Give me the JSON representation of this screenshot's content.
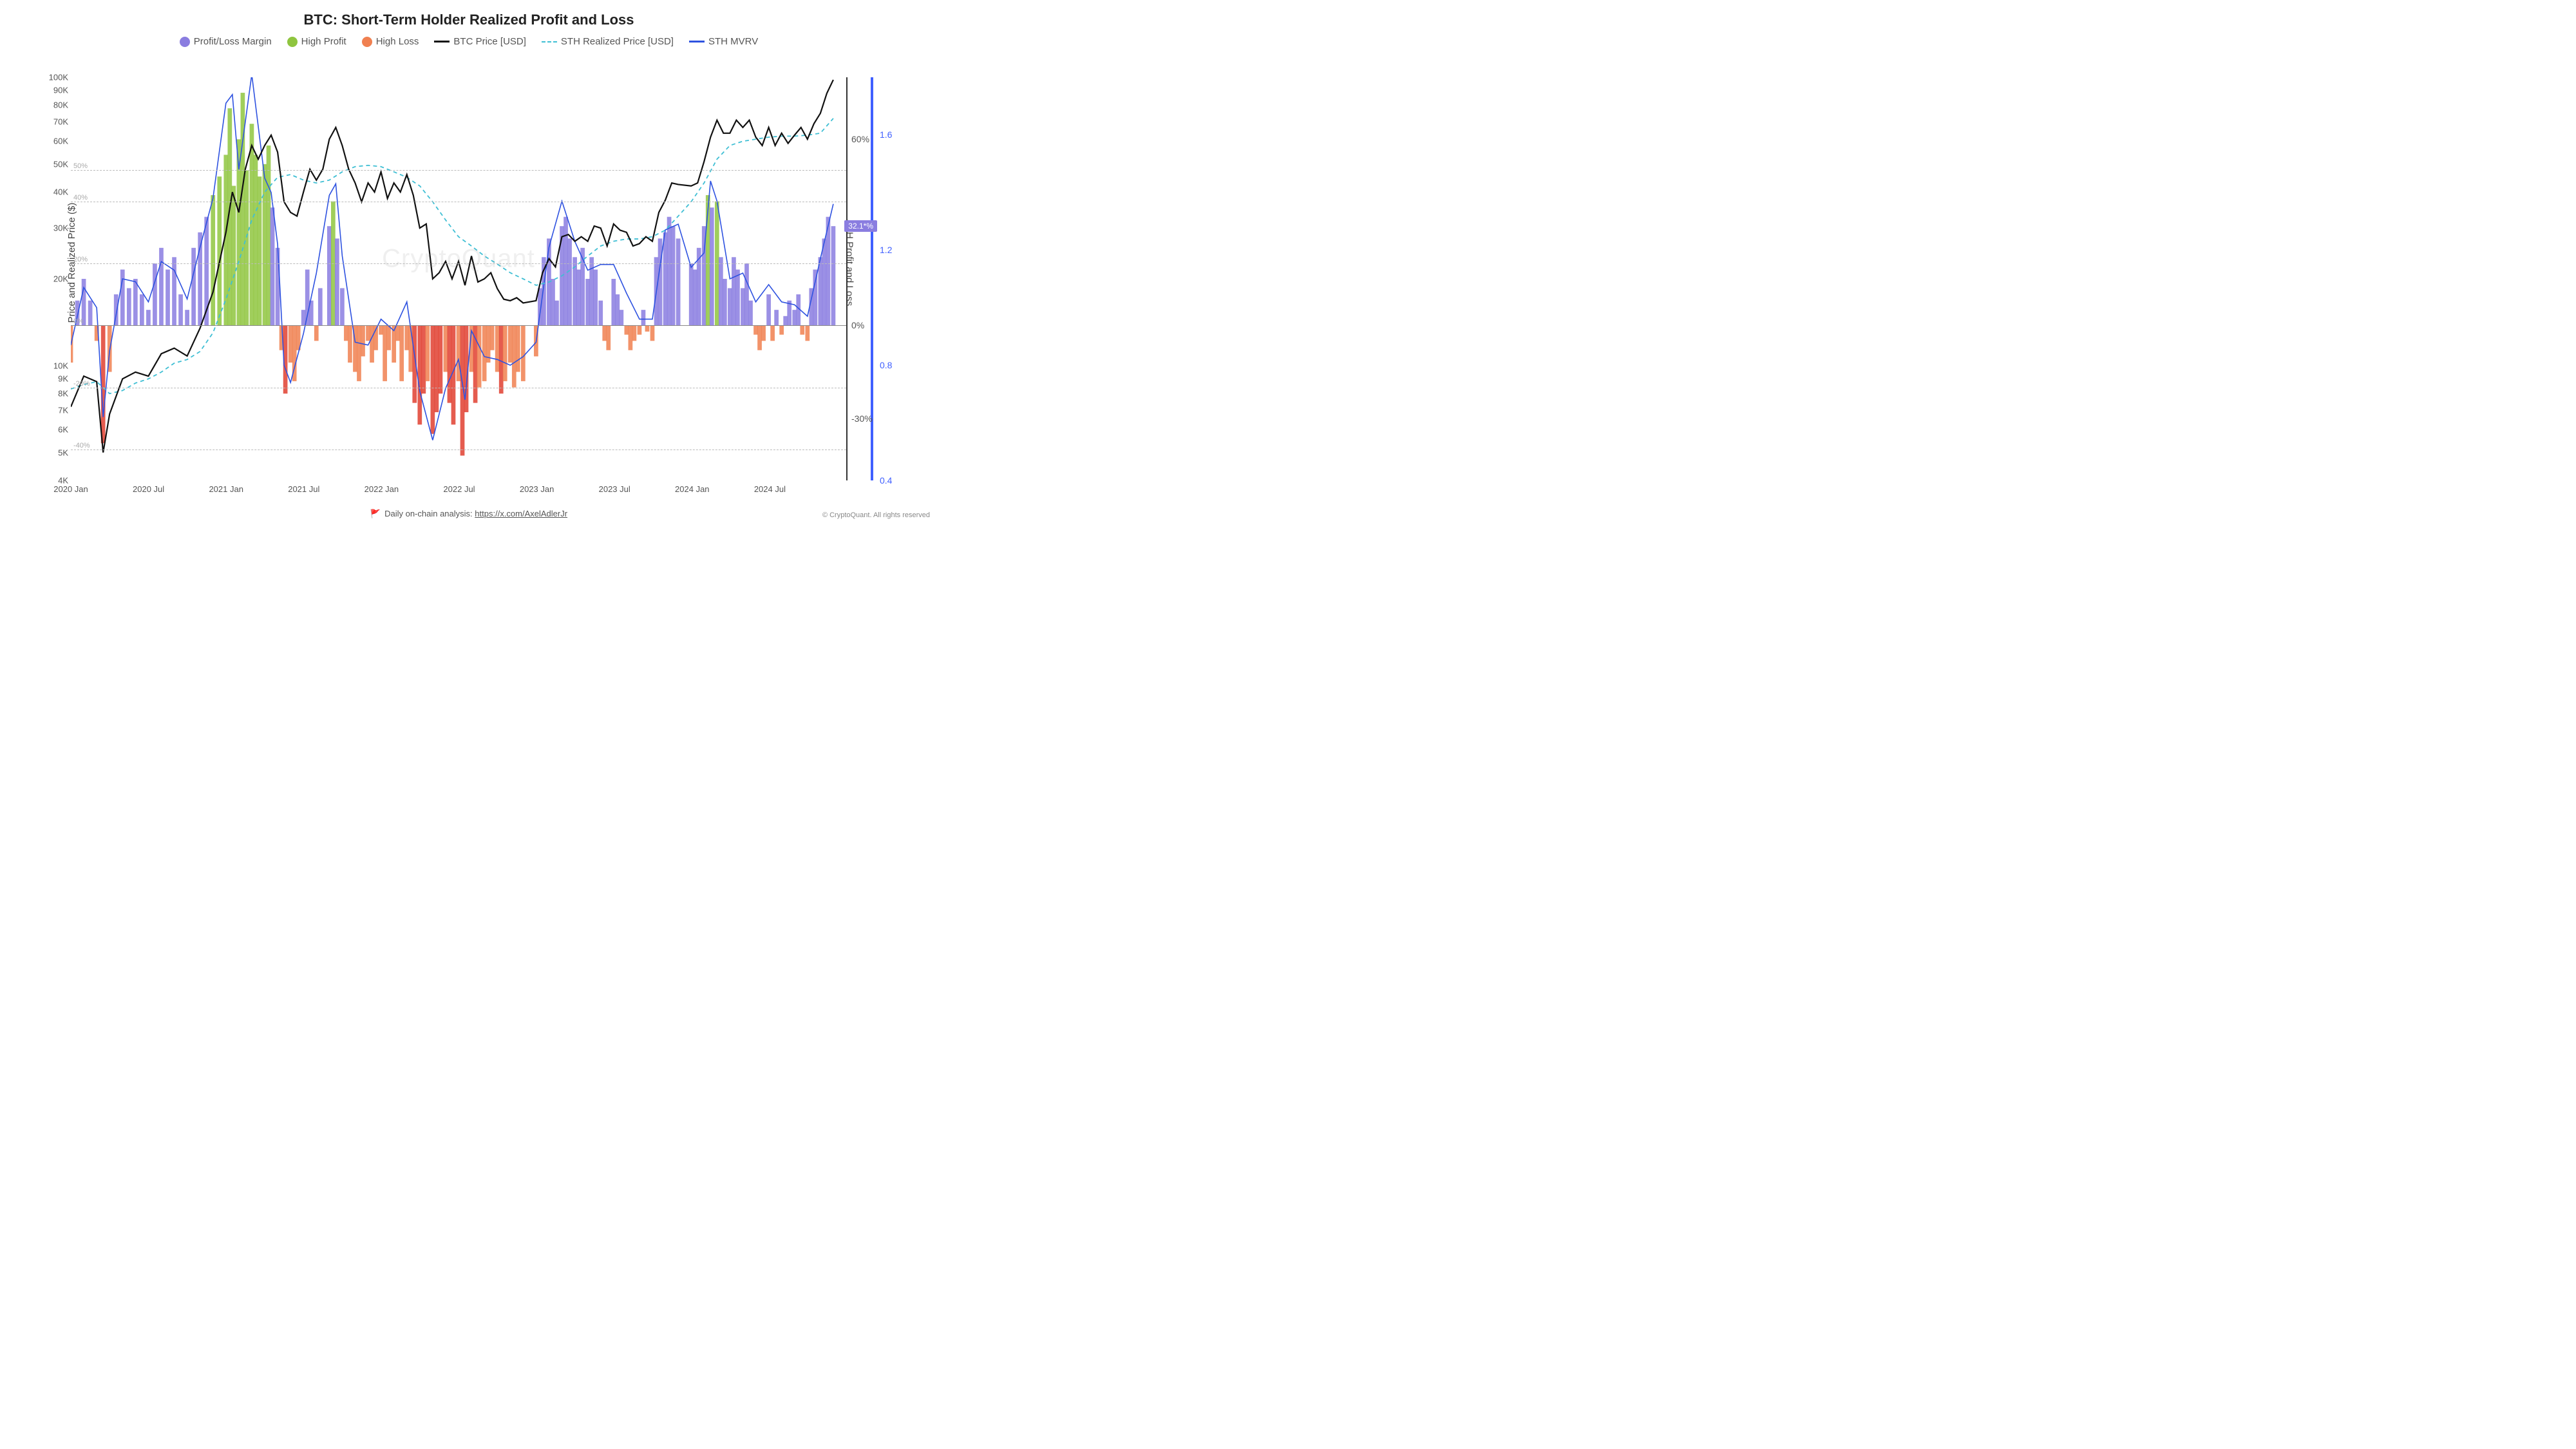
{
  "title": "BTC: Short-Term Holder Realized Profit and Loss",
  "legend": {
    "pl_margin": "Profit/Loss Margin",
    "high_profit": "High Profit",
    "high_loss": "High Loss",
    "btc_price": "BTC Price [USD]",
    "sth_realized": "STH Realized Price [USD]",
    "sth_mvrv": "STH MVRV"
  },
  "colors": {
    "pl_margin": "#8a7de0",
    "high_profit": "#8fc53f",
    "high_loss": "#f08050",
    "high_loss_deep": "#e04030",
    "btc_price": "#111111",
    "sth_realized": "#3fbfd4",
    "sth_mvrv": "#2e52e0",
    "grid": "#bbbbbb",
    "bg": "#ffffff",
    "mvrv_axis": "#4060ff",
    "badge_bg": "#8a7de0"
  },
  "y_left": {
    "label": "Price and Realized Price ($)",
    "scale": "log",
    "min": 4000,
    "max": 100000,
    "ticks": [
      "4K",
      "5K",
      "6K",
      "7K",
      "8K",
      "9K",
      "10K",
      "20K",
      "30K",
      "40K",
      "50K",
      "60K",
      "70K",
      "80K",
      "90K",
      "100K"
    ]
  },
  "y_right_pct": {
    "label": "STH Profit and Loss",
    "scale": "linear",
    "min": -50,
    "max": 80,
    "ticks": [
      {
        "v": -30,
        "label": "-30%"
      },
      {
        "v": 0,
        "label": "0%"
      },
      {
        "v": 60,
        "label": "60%"
      }
    ],
    "threshold_lines": [
      {
        "v": 50,
        "label": "50%"
      },
      {
        "v": 40,
        "label": "40%"
      },
      {
        "v": 20,
        "label": "20%"
      },
      {
        "v": 0,
        "label": "0%"
      },
      {
        "v": -20,
        "label": "-20%"
      },
      {
        "v": -40,
        "label": "-40%"
      }
    ]
  },
  "y_mvrv": {
    "min": 0.4,
    "max": 1.8,
    "ticks": [
      {
        "v": 0.4,
        "label": "0.4"
      },
      {
        "v": 0.8,
        "label": "0.8"
      },
      {
        "v": 1.2,
        "label": "1.2"
      },
      {
        "v": 1.6,
        "label": "1.6"
      }
    ]
  },
  "x_axis": {
    "min": 0,
    "max": 60,
    "ticks": [
      {
        "v": 0,
        "label": "2020 Jan"
      },
      {
        "v": 6,
        "label": "2020 Jul"
      },
      {
        "v": 12,
        "label": "2021 Jan"
      },
      {
        "v": 18,
        "label": "2021 Jul"
      },
      {
        "v": 24,
        "label": "2022 Jan"
      },
      {
        "v": 30,
        "label": "2022 Jul"
      },
      {
        "v": 36,
        "label": "2023 Jan"
      },
      {
        "v": 42,
        "label": "2023 Jul"
      },
      {
        "v": 48,
        "label": "2024 Jan"
      },
      {
        "v": 54,
        "label": "2024 Jul"
      }
    ]
  },
  "current_value_badge": "32.1*%",
  "footer_text": "Daily on-chain analysis:",
  "footer_link": "https://x.com/AxelAdlerJr",
  "copyright": "© CryptoQuant. All rights reserved",
  "watermark": "CryptoQuant",
  "series": {
    "btc_price": [
      [
        0,
        7200
      ],
      [
        1,
        9200
      ],
      [
        2,
        8800
      ],
      [
        2.5,
        5000
      ],
      [
        3,
        6800
      ],
      [
        4,
        9000
      ],
      [
        5,
        9500
      ],
      [
        6,
        9200
      ],
      [
        7,
        11000
      ],
      [
        8,
        11500
      ],
      [
        9,
        10800
      ],
      [
        10,
        13500
      ],
      [
        11,
        18000
      ],
      [
        12,
        29000
      ],
      [
        12.5,
        40000
      ],
      [
        13,
        34000
      ],
      [
        13.5,
        48000
      ],
      [
        14,
        58000
      ],
      [
        14.5,
        52000
      ],
      [
        15,
        58000
      ],
      [
        15.5,
        63000
      ],
      [
        16,
        55000
      ],
      [
        16.5,
        37000
      ],
      [
        17,
        34000
      ],
      [
        17.5,
        33000
      ],
      [
        18,
        40000
      ],
      [
        18.5,
        48000
      ],
      [
        19,
        44000
      ],
      [
        19.5,
        48000
      ],
      [
        20,
        61000
      ],
      [
        20.5,
        67000
      ],
      [
        21,
        58000
      ],
      [
        21.5,
        48000
      ],
      [
        22,
        43000
      ],
      [
        22.5,
        37000
      ],
      [
        23,
        43000
      ],
      [
        23.5,
        40000
      ],
      [
        24,
        47000
      ],
      [
        24.5,
        38000
      ],
      [
        25,
        43000
      ],
      [
        25.5,
        40000
      ],
      [
        26,
        46000
      ],
      [
        26.5,
        39000
      ],
      [
        27,
        30000
      ],
      [
        27.5,
        31000
      ],
      [
        28,
        20000
      ],
      [
        28.5,
        21000
      ],
      [
        29,
        23000
      ],
      [
        29.5,
        20000
      ],
      [
        30,
        23000
      ],
      [
        30.5,
        19000
      ],
      [
        31,
        24000
      ],
      [
        31.5,
        19500
      ],
      [
        32,
        20000
      ],
      [
        32.5,
        21000
      ],
      [
        33,
        18500
      ],
      [
        33.5,
        17000
      ],
      [
        34,
        16800
      ],
      [
        34.5,
        17200
      ],
      [
        35,
        16500
      ],
      [
        36,
        16800
      ],
      [
        36.5,
        21000
      ],
      [
        37,
        23500
      ],
      [
        37.5,
        22000
      ],
      [
        38,
        28000
      ],
      [
        38.5,
        28500
      ],
      [
        39,
        27000
      ],
      [
        39.5,
        28000
      ],
      [
        40,
        27000
      ],
      [
        40.5,
        30500
      ],
      [
        41,
        30000
      ],
      [
        41.5,
        26000
      ],
      [
        42,
        31000
      ],
      [
        42.5,
        29500
      ],
      [
        43,
        29000
      ],
      [
        43.5,
        26000
      ],
      [
        44,
        26500
      ],
      [
        44.5,
        28000
      ],
      [
        45,
        27000
      ],
      [
        45.5,
        34000
      ],
      [
        46,
        37500
      ],
      [
        46.5,
        43000
      ],
      [
        47,
        42500
      ],
      [
        48,
        42000
      ],
      [
        48.5,
        43000
      ],
      [
        49,
        51000
      ],
      [
        49.5,
        62000
      ],
      [
        50,
        71000
      ],
      [
        50.5,
        64000
      ],
      [
        51,
        64000
      ],
      [
        51.5,
        71000
      ],
      [
        52,
        67000
      ],
      [
        52.5,
        71000
      ],
      [
        53,
        62000
      ],
      [
        53.5,
        58000
      ],
      [
        54,
        67000
      ],
      [
        54.5,
        58000
      ],
      [
        55,
        64000
      ],
      [
        55.5,
        59000
      ],
      [
        56,
        63000
      ],
      [
        56.5,
        67000
      ],
      [
        57,
        61000
      ],
      [
        57.5,
        69000
      ],
      [
        58,
        75000
      ],
      [
        58.5,
        88000
      ],
      [
        59,
        98000
      ]
    ],
    "sth_realized": [
      [
        0,
        8300
      ],
      [
        1,
        8600
      ],
      [
        2,
        8800
      ],
      [
        3,
        8000
      ],
      [
        4,
        8200
      ],
      [
        5,
        8700
      ],
      [
        6,
        9000
      ],
      [
        7,
        9500
      ],
      [
        8,
        10200
      ],
      [
        9,
        10500
      ],
      [
        10,
        11200
      ],
      [
        11,
        13000
      ],
      [
        12,
        17000
      ],
      [
        13,
        23000
      ],
      [
        14,
        32000
      ],
      [
        15,
        40000
      ],
      [
        16,
        45000
      ],
      [
        17,
        46000
      ],
      [
        18,
        44000
      ],
      [
        19,
        43000
      ],
      [
        20,
        44000
      ],
      [
        21,
        47000
      ],
      [
        22,
        49000
      ],
      [
        23,
        49500
      ],
      [
        24,
        49000
      ],
      [
        25,
        47000
      ],
      [
        26,
        45000
      ],
      [
        27,
        42000
      ],
      [
        28,
        37000
      ],
      [
        29,
        32000
      ],
      [
        30,
        28000
      ],
      [
        31,
        26000
      ],
      [
        32,
        24000
      ],
      [
        33,
        22500
      ],
      [
        34,
        21000
      ],
      [
        35,
        20000
      ],
      [
        36,
        19000
      ],
      [
        37,
        19500
      ],
      [
        38,
        20500
      ],
      [
        39,
        22000
      ],
      [
        40,
        24000
      ],
      [
        41,
        26000
      ],
      [
        42,
        27000
      ],
      [
        43,
        27500
      ],
      [
        44,
        27500
      ],
      [
        45,
        28000
      ],
      [
        46,
        29500
      ],
      [
        47,
        33000
      ],
      [
        48,
        37000
      ],
      [
        49,
        43000
      ],
      [
        50,
        52000
      ],
      [
        51,
        58000
      ],
      [
        52,
        60000
      ],
      [
        53,
        61000
      ],
      [
        54,
        62000
      ],
      [
        55,
        62500
      ],
      [
        56,
        62500
      ],
      [
        57,
        63000
      ],
      [
        58,
        64000
      ],
      [
        59,
        72000
      ]
    ],
    "pl_margin": [
      [
        0,
        -12
      ],
      [
        0.5,
        8
      ],
      [
        1,
        15
      ],
      [
        1.5,
        8
      ],
      [
        2,
        -5
      ],
      [
        2.5,
        -38
      ],
      [
        3,
        -15
      ],
      [
        3.5,
        10
      ],
      [
        4,
        18
      ],
      [
        4.5,
        12
      ],
      [
        5,
        15
      ],
      [
        5.5,
        10
      ],
      [
        6,
        5
      ],
      [
        6.5,
        20
      ],
      [
        7,
        25
      ],
      [
        7.5,
        18
      ],
      [
        8,
        22
      ],
      [
        8.5,
        10
      ],
      [
        9,
        5
      ],
      [
        9.5,
        25
      ],
      [
        10,
        30
      ],
      [
        10.5,
        35
      ],
      [
        11,
        42
      ],
      [
        11.5,
        48
      ],
      [
        12,
        55
      ],
      [
        12.3,
        70
      ],
      [
        12.6,
        45
      ],
      [
        13,
        60
      ],
      [
        13.3,
        75
      ],
      [
        13.6,
        50
      ],
      [
        14,
        65
      ],
      [
        14.3,
        55
      ],
      [
        14.6,
        48
      ],
      [
        15,
        52
      ],
      [
        15.3,
        58
      ],
      [
        15.6,
        38
      ],
      [
        16,
        25
      ],
      [
        16.3,
        -8
      ],
      [
        16.6,
        -22
      ],
      [
        17,
        -12
      ],
      [
        17.3,
        -18
      ],
      [
        17.6,
        -8
      ],
      [
        18,
        5
      ],
      [
        18.3,
        18
      ],
      [
        18.6,
        8
      ],
      [
        19,
        -5
      ],
      [
        19.3,
        12
      ],
      [
        20,
        32
      ],
      [
        20.3,
        40
      ],
      [
        20.6,
        28
      ],
      [
        21,
        12
      ],
      [
        21.3,
        -5
      ],
      [
        21.6,
        -12
      ],
      [
        22,
        -15
      ],
      [
        22.3,
        -18
      ],
      [
        22.6,
        -10
      ],
      [
        23,
        -5
      ],
      [
        23.3,
        -12
      ],
      [
        23.6,
        -8
      ],
      [
        24,
        -3
      ],
      [
        24.3,
        -18
      ],
      [
        24.6,
        -8
      ],
      [
        25,
        -12
      ],
      [
        25.3,
        -5
      ],
      [
        25.6,
        -18
      ],
      [
        26,
        -8
      ],
      [
        26.3,
        -15
      ],
      [
        26.6,
        -25
      ],
      [
        27,
        -32
      ],
      [
        27.3,
        -22
      ],
      [
        27.6,
        -18
      ],
      [
        28,
        -35
      ],
      [
        28.3,
        -28
      ],
      [
        28.6,
        -22
      ],
      [
        29,
        -15
      ],
      [
        29.3,
        -25
      ],
      [
        29.6,
        -32
      ],
      [
        30,
        -18
      ],
      [
        30.3,
        -42
      ],
      [
        30.6,
        -28
      ],
      [
        31,
        -15
      ],
      [
        31.3,
        -25
      ],
      [
        31.6,
        -20
      ],
      [
        32,
        -18
      ],
      [
        32.3,
        -12
      ],
      [
        32.6,
        -8
      ],
      [
        33,
        -15
      ],
      [
        33.3,
        -22
      ],
      [
        33.6,
        -18
      ],
      [
        34,
        -12
      ],
      [
        34.3,
        -20
      ],
      [
        34.6,
        -15
      ],
      [
        35,
        -18
      ],
      [
        36,
        -10
      ],
      [
        36.3,
        12
      ],
      [
        36.6,
        22
      ],
      [
        37,
        28
      ],
      [
        37.3,
        15
      ],
      [
        37.6,
        8
      ],
      [
        38,
        32
      ],
      [
        38.3,
        35
      ],
      [
        38.6,
        28
      ],
      [
        39,
        22
      ],
      [
        39.3,
        18
      ],
      [
        39.6,
        25
      ],
      [
        40,
        15
      ],
      [
        40.3,
        22
      ],
      [
        40.6,
        18
      ],
      [
        41,
        8
      ],
      [
        41.3,
        -5
      ],
      [
        41.6,
        -8
      ],
      [
        42,
        15
      ],
      [
        42.3,
        10
      ],
      [
        42.6,
        5
      ],
      [
        43,
        -3
      ],
      [
        43.3,
        -8
      ],
      [
        43.6,
        -5
      ],
      [
        44,
        -3
      ],
      [
        44.3,
        5
      ],
      [
        44.6,
        -2
      ],
      [
        45,
        -5
      ],
      [
        45.3,
        22
      ],
      [
        45.6,
        28
      ],
      [
        46,
        30
      ],
      [
        46.3,
        35
      ],
      [
        46.6,
        32
      ],
      [
        47,
        28
      ],
      [
        48,
        20
      ],
      [
        48.3,
        18
      ],
      [
        48.6,
        25
      ],
      [
        49,
        32
      ],
      [
        49.3,
        42
      ],
      [
        49.6,
        38
      ],
      [
        50,
        40
      ],
      [
        50.3,
        22
      ],
      [
        50.6,
        15
      ],
      [
        51,
        12
      ],
      [
        51.3,
        22
      ],
      [
        51.6,
        18
      ],
      [
        52,
        12
      ],
      [
        52.3,
        20
      ],
      [
        52.6,
        8
      ],
      [
        53,
        -3
      ],
      [
        53.3,
        -8
      ],
      [
        53.6,
        -5
      ],
      [
        54,
        10
      ],
      [
        54.3,
        -5
      ],
      [
        54.6,
        5
      ],
      [
        55,
        -3
      ],
      [
        55.3,
        3
      ],
      [
        55.6,
        8
      ],
      [
        56,
        5
      ],
      [
        56.3,
        10
      ],
      [
        56.6,
        -3
      ],
      [
        57,
        -5
      ],
      [
        57.3,
        12
      ],
      [
        57.6,
        18
      ],
      [
        58,
        22
      ],
      [
        58.3,
        28
      ],
      [
        58.6,
        35
      ],
      [
        59,
        32
      ]
    ],
    "sth_mvrv": [
      [
        0,
        0.87
      ],
      [
        1,
        1.07
      ],
      [
        2,
        1.0
      ],
      [
        2.5,
        0.62
      ],
      [
        3,
        0.85
      ],
      [
        4,
        1.1
      ],
      [
        5,
        1.09
      ],
      [
        6,
        1.02
      ],
      [
        7,
        1.16
      ],
      [
        8,
        1.13
      ],
      [
        9,
        1.03
      ],
      [
        10,
        1.21
      ],
      [
        11,
        1.38
      ],
      [
        12,
        1.71
      ],
      [
        12.5,
        1.74
      ],
      [
        13,
        1.48
      ],
      [
        14,
        1.81
      ],
      [
        15,
        1.45
      ],
      [
        15.5,
        1.4
      ],
      [
        16,
        1.22
      ],
      [
        16.5,
        0.8
      ],
      [
        17,
        0.74
      ],
      [
        18,
        0.91
      ],
      [
        19,
        1.12
      ],
      [
        20,
        1.39
      ],
      [
        20.5,
        1.43
      ],
      [
        21,
        1.18
      ],
      [
        22,
        0.88
      ],
      [
        23,
        0.87
      ],
      [
        24,
        0.96
      ],
      [
        25,
        0.92
      ],
      [
        26,
        1.02
      ],
      [
        27,
        0.71
      ],
      [
        28,
        0.54
      ],
      [
        29,
        0.72
      ],
      [
        30,
        0.82
      ],
      [
        30.5,
        0.68
      ],
      [
        31,
        0.92
      ],
      [
        32,
        0.83
      ],
      [
        33,
        0.82
      ],
      [
        34,
        0.8
      ],
      [
        35,
        0.83
      ],
      [
        36,
        0.88
      ],
      [
        37,
        1.21
      ],
      [
        38,
        1.37
      ],
      [
        39,
        1.23
      ],
      [
        40,
        1.13
      ],
      [
        41,
        1.15
      ],
      [
        42,
        1.15
      ],
      [
        43,
        1.05
      ],
      [
        44,
        0.96
      ],
      [
        45,
        0.96
      ],
      [
        46,
        1.27
      ],
      [
        47,
        1.29
      ],
      [
        48,
        1.14
      ],
      [
        49,
        1.19
      ],
      [
        49.5,
        1.44
      ],
      [
        50,
        1.37
      ],
      [
        51,
        1.1
      ],
      [
        52,
        1.12
      ],
      [
        53,
        1.02
      ],
      [
        54,
        1.08
      ],
      [
        55,
        1.02
      ],
      [
        56,
        1.01
      ],
      [
        57,
        0.97
      ],
      [
        58,
        1.17
      ],
      [
        59,
        1.36
      ]
    ]
  }
}
